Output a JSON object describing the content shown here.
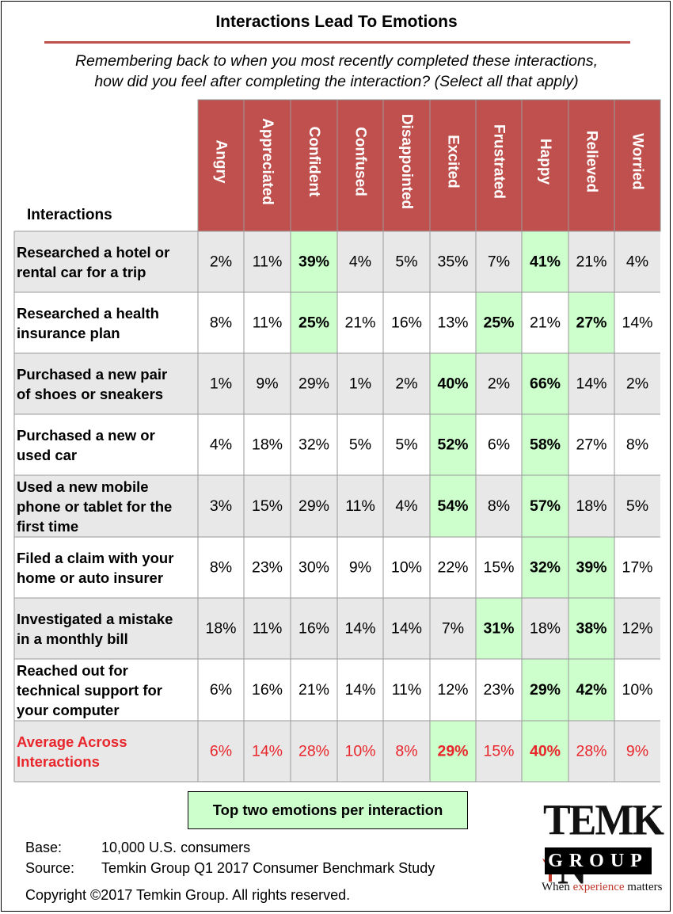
{
  "title": "Interactions Lead To Emotions",
  "subtitle_line1": "Remembering back to when you most recently completed these interactions,",
  "subtitle_line2": "how did you feel after completing the interaction? (Select all that apply)",
  "row_header": "Interactions",
  "legend": "Top two emotions per interaction",
  "base_label": "Base:",
  "base_value": "10,000 U.S. consumers",
  "source_label": "Source:",
  "source_value": "Temkin Group Q1 2017 Consumer Benchmark Study",
  "copyright": "Copyright ©2017 Temkin Group. All rights reserved.",
  "logo": {
    "name_part1": "TEMK",
    "name_part2": "N",
    "group": "GROUP",
    "tag_part1": "When ",
    "tag_part2": "experience",
    "tag_part3": " matters"
  },
  "colors": {
    "header_bg": "#c0504d",
    "highlight": "#ccffcc",
    "average_text": "#e8262b",
    "stripe": "#e8e8e8"
  },
  "chart_data": {
    "type": "table",
    "columns": [
      "Angry",
      "Appreciated",
      "Confident",
      "Confused",
      "Disappointed",
      "Excited",
      "Frustrated",
      "Happy",
      "Relieved",
      "Worried"
    ],
    "rows": [
      {
        "label_lines": [
          "Researched a hotel or",
          "rental car for a trip"
        ],
        "values": [
          "2%",
          "11%",
          "39%",
          "4%",
          "5%",
          "35%",
          "7%",
          "41%",
          "21%",
          "4%"
        ],
        "top": [
          2,
          7
        ]
      },
      {
        "label_lines": [
          "Researched a health",
          "insurance plan"
        ],
        "values": [
          "8%",
          "11%",
          "25%",
          "21%",
          "16%",
          "13%",
          "25%",
          "21%",
          "27%",
          "14%"
        ],
        "top": [
          2,
          6,
          8
        ]
      },
      {
        "label_lines": [
          "Purchased a new pair",
          "of shoes or sneakers"
        ],
        "values": [
          "1%",
          "9%",
          "29%",
          "1%",
          "2%",
          "40%",
          "2%",
          "66%",
          "14%",
          "2%"
        ],
        "top": [
          5,
          7
        ]
      },
      {
        "label_lines": [
          "Purchased a new or",
          "used car"
        ],
        "values": [
          "4%",
          "18%",
          "32%",
          "5%",
          "5%",
          "52%",
          "6%",
          "58%",
          "27%",
          "8%"
        ],
        "top": [
          5,
          7
        ]
      },
      {
        "label_lines": [
          "Used a new mobile",
          "phone or tablet for the",
          "first time"
        ],
        "values": [
          "3%",
          "15%",
          "29%",
          "11%",
          "4%",
          "54%",
          "8%",
          "57%",
          "18%",
          "5%"
        ],
        "top": [
          5,
          7
        ]
      },
      {
        "label_lines": [
          "Filed a claim with your",
          "home or auto insurer"
        ],
        "values": [
          "8%",
          "23%",
          "30%",
          "9%",
          "10%",
          "22%",
          "15%",
          "32%",
          "39%",
          "17%"
        ],
        "top": [
          7,
          8
        ]
      },
      {
        "label_lines": [
          "Investigated a mistake",
          "in a monthly bill"
        ],
        "values": [
          "18%",
          "11%",
          "16%",
          "14%",
          "14%",
          "7%",
          "31%",
          "18%",
          "38%",
          "12%"
        ],
        "top": [
          6,
          8
        ]
      },
      {
        "label_lines": [
          "Reached out for",
          "technical support for",
          "your computer"
        ],
        "values": [
          "6%",
          "16%",
          "21%",
          "14%",
          "11%",
          "12%",
          "23%",
          "29%",
          "42%",
          "10%"
        ],
        "top": [
          7,
          8
        ]
      }
    ],
    "average": {
      "label_lines": [
        "Average Across",
        "Interactions"
      ],
      "values": [
        "6%",
        "14%",
        "28%",
        "10%",
        "8%",
        "29%",
        "15%",
        "40%",
        "28%",
        "9%"
      ],
      "top": [
        5,
        7
      ]
    }
  }
}
